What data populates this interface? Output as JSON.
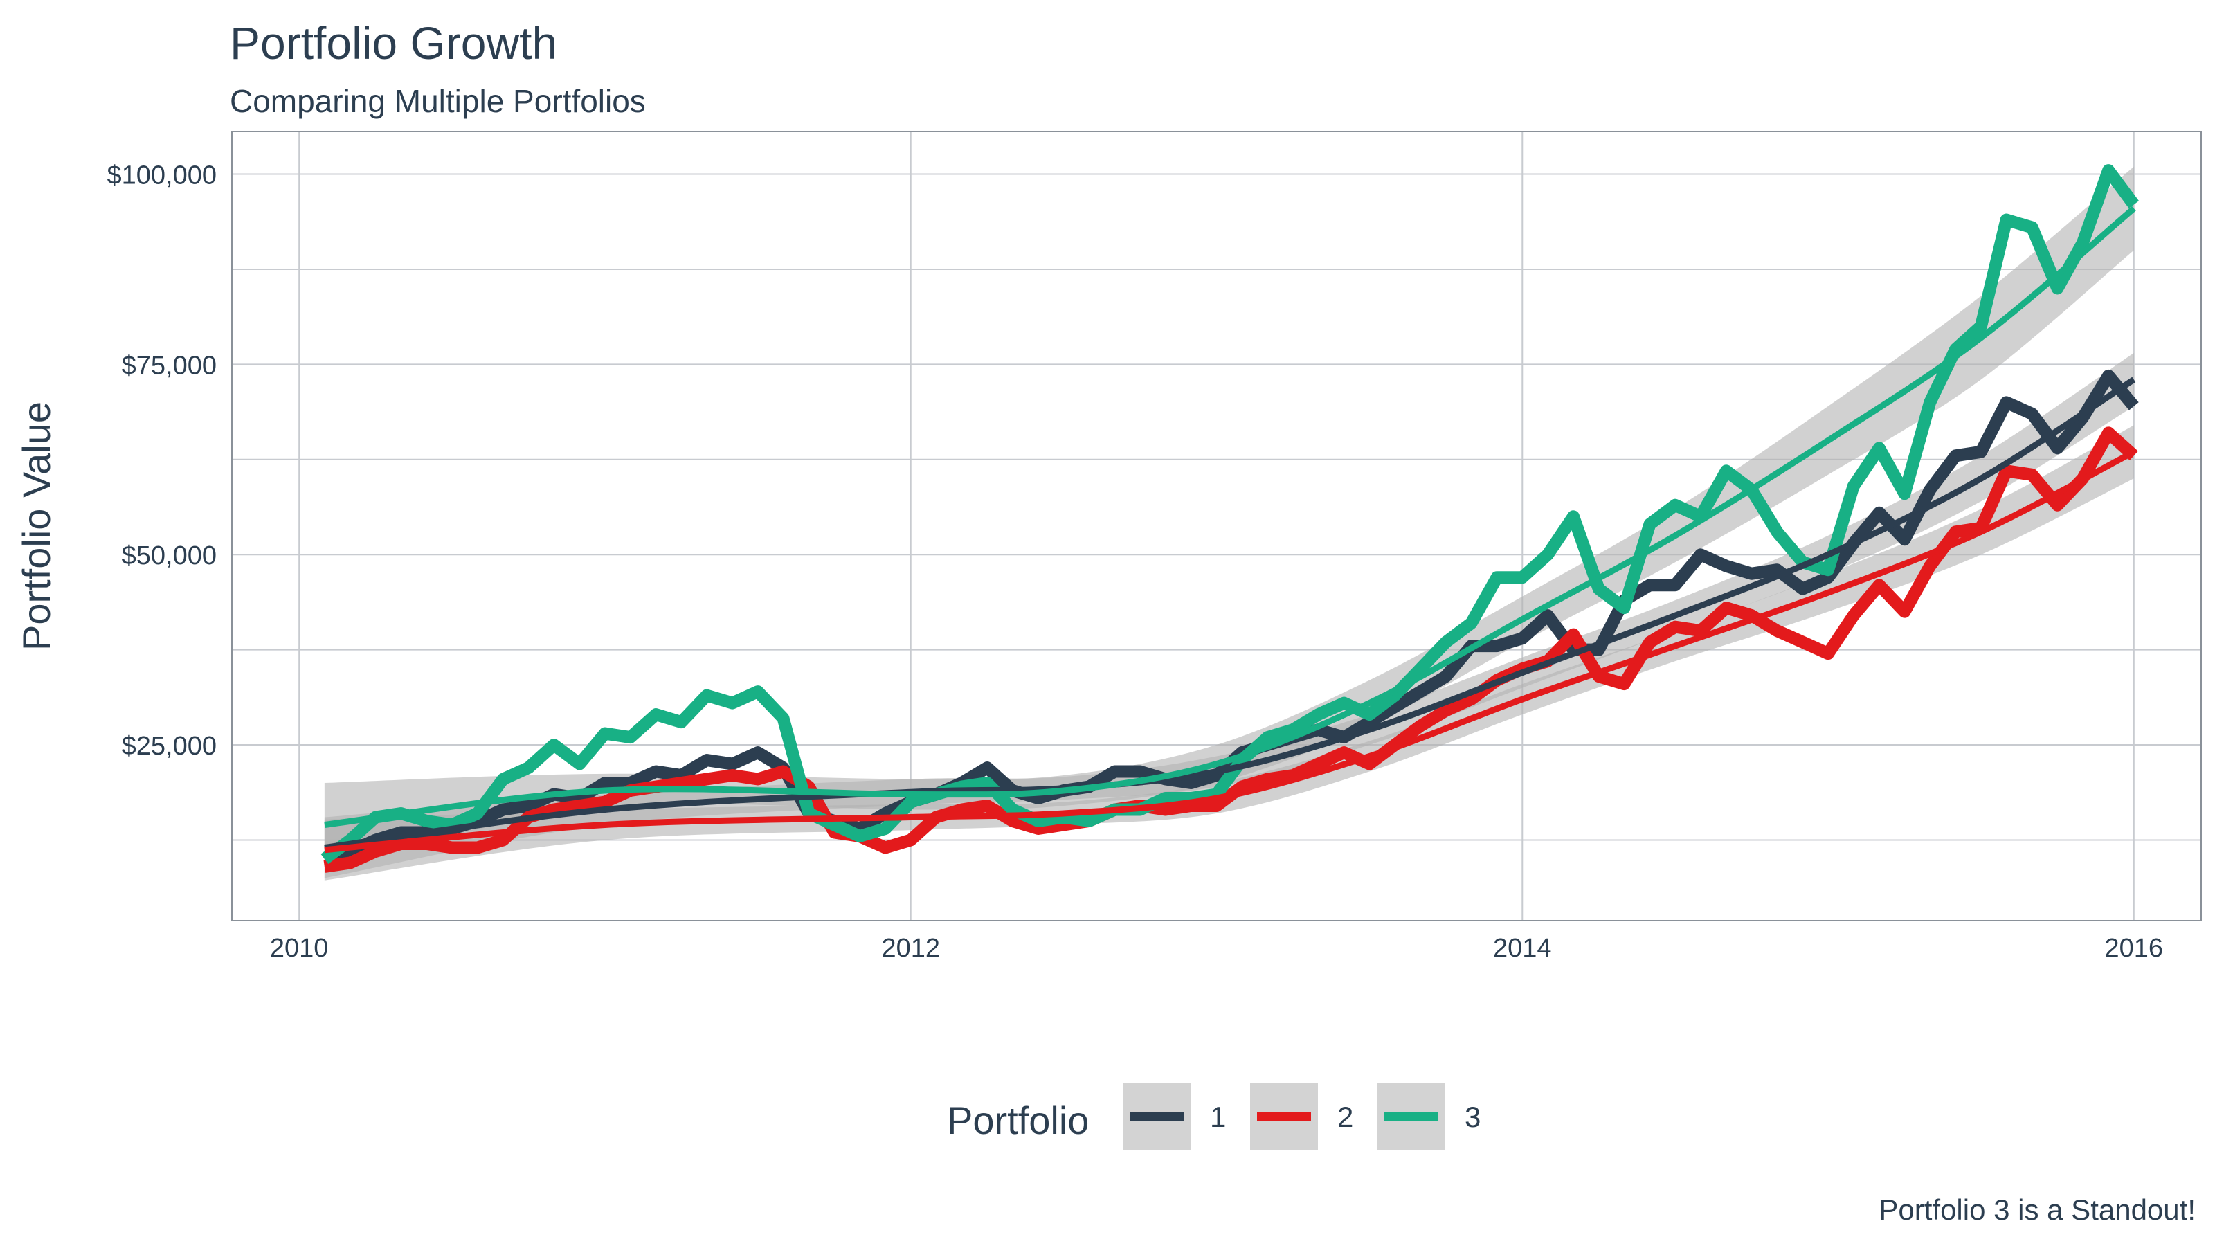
{
  "chart_data": {
    "type": "line",
    "title": "Portfolio Growth",
    "subtitle": "Comparing Multiple Portfolios",
    "xlabel": "",
    "ylabel": "Portfolio Value",
    "caption": "Portfolio 3 is a Standout!",
    "legend_title": "Portfolio",
    "legend_position": "bottom",
    "grid": true,
    "smooth_overlay": true,
    "xlim": [
      2009.78,
      2016.22
    ],
    "ylim": [
      1900,
      105600
    ],
    "x_ticks": [
      2010,
      2012,
      2014,
      2016
    ],
    "y_ticks": [
      25000,
      50000,
      75000,
      100000
    ],
    "y_tick_labels": [
      "$25,000",
      "$50,000",
      "$75,000",
      "$100,000"
    ],
    "x_tick_labels": [
      "2010",
      "2012",
      "2014",
      "2016"
    ],
    "x": [
      2010.083,
      2010.167,
      2010.25,
      2010.333,
      2010.417,
      2010.5,
      2010.583,
      2010.667,
      2010.75,
      2010.833,
      2010.917,
      2011.0,
      2011.083,
      2011.167,
      2011.25,
      2011.333,
      2011.417,
      2011.5,
      2011.583,
      2011.667,
      2011.75,
      2011.833,
      2011.917,
      2012.0,
      2012.083,
      2012.167,
      2012.25,
      2012.333,
      2012.417,
      2012.5,
      2012.583,
      2012.667,
      2012.75,
      2012.833,
      2012.917,
      2013.0,
      2013.083,
      2013.167,
      2013.25,
      2013.333,
      2013.417,
      2013.5,
      2013.583,
      2013.667,
      2013.75,
      2013.833,
      2013.917,
      2014.0,
      2014.083,
      2014.167,
      2014.25,
      2014.333,
      2014.417,
      2014.5,
      2014.583,
      2014.667,
      2014.75,
      2014.833,
      2014.917,
      2015.0,
      2015.083,
      2015.167,
      2015.25,
      2015.333,
      2015.417,
      2015.5,
      2015.583,
      2015.667,
      2015.75,
      2015.833,
      2015.917,
      2016.0
    ],
    "series": [
      {
        "name": "1",
        "color": "#2c3e50",
        "values": [
          10000,
          11000,
          12500,
          13500,
          13500,
          14000,
          15000,
          16500,
          17000,
          18500,
          18000,
          20000,
          20000,
          21500,
          21000,
          23000,
          22500,
          24000,
          22000,
          16000,
          15000,
          14000,
          16000,
          17500,
          18500,
          20000,
          22000,
          19000,
          18000,
          19000,
          19500,
          21500,
          21500,
          20500,
          20000,
          21000,
          24000,
          25000,
          26000,
          27000,
          26000,
          28000,
          30000,
          32000,
          34000,
          38000,
          38000,
          39000,
          42000,
          37500,
          37500,
          44000,
          46000,
          46000,
          50000,
          48500,
          47500,
          48000,
          45500,
          47000,
          51500,
          55500,
          52000,
          58500,
          63000,
          63500,
          70000,
          68500,
          64000,
          68000,
          73500,
          69500
        ]
      },
      {
        "name": "2",
        "color": "#e31a1c",
        "values": [
          9000,
          9500,
          11000,
          12000,
          12000,
          11500,
          11500,
          12500,
          15500,
          16500,
          17000,
          17500,
          19000,
          19500,
          20000,
          20500,
          21000,
          20500,
          21500,
          19500,
          13500,
          13000,
          11500,
          12500,
          15500,
          16500,
          17000,
          15000,
          14000,
          14500,
          15000,
          16500,
          17000,
          16500,
          17000,
          17000,
          19500,
          20500,
          21000,
          22500,
          24000,
          22500,
          25000,
          27500,
          29500,
          31000,
          33500,
          35000,
          36000,
          39500,
          34000,
          33000,
          38500,
          40500,
          40000,
          43000,
          42000,
          40000,
          38500,
          37000,
          42000,
          46000,
          42500,
          48500,
          53000,
          53500,
          61000,
          60500,
          56500,
          60000,
          66000,
          63000
        ]
      },
      {
        "name": "3",
        "color": "#18b085",
        "values": [
          10000,
          12500,
          15500,
          16000,
          15000,
          14500,
          16000,
          20500,
          22000,
          25000,
          22500,
          26500,
          26000,
          29000,
          28000,
          31500,
          30500,
          32000,
          28500,
          16000,
          14500,
          13000,
          14000,
          17500,
          18500,
          19500,
          20000,
          16500,
          15000,
          15500,
          15000,
          16500,
          16500,
          18000,
          18000,
          18500,
          23000,
          26000,
          27000,
          29000,
          30500,
          29000,
          31500,
          35000,
          38500,
          41000,
          47000,
          47000,
          50000,
          55000,
          45500,
          43000,
          54000,
          56500,
          55000,
          61000,
          58500,
          53000,
          49000,
          48000,
          59000,
          64000,
          58000,
          70000,
          77000,
          80000,
          94000,
          93000,
          85000,
          91000,
          100500,
          96000
        ]
      }
    ],
    "smooth": [
      {
        "name": "1",
        "color": "#2c3e50",
        "x": [
          2010.083,
          2011.0,
          2012.0,
          2012.5,
          2013.0,
          2013.5,
          2014.0,
          2014.5,
          2015.0,
          2015.5,
          2016.0
        ],
        "values": [
          11500,
          16500,
          18800,
          19300,
          21500,
          27000,
          34500,
          42000,
          50000,
          60000,
          73000
        ],
        "se_upper": [
          15500,
          18500,
          20500,
          20800,
          23500,
          29000,
          36500,
          44000,
          52500,
          63000,
          76500
        ],
        "se_lower": [
          7500,
          14500,
          17100,
          17800,
          19500,
          25000,
          32500,
          40000,
          47500,
          57000,
          69500
        ]
      },
      {
        "name": "2",
        "color": "#e31a1c",
        "x": [
          2010.083,
          2011.0,
          2012.0,
          2012.5,
          2013.0,
          2013.5,
          2014.0,
          2014.5,
          2015.0,
          2015.5,
          2016.0
        ],
        "values": [
          11200,
          14500,
          15500,
          16000,
          18000,
          23500,
          31000,
          38000,
          45000,
          53000,
          63500
        ],
        "se_upper": [
          15200,
          16500,
          17200,
          17500,
          20000,
          25500,
          33000,
          40000,
          47500,
          56000,
          67000
        ],
        "se_lower": [
          7200,
          12500,
          13800,
          14500,
          16000,
          21500,
          29000,
          36000,
          42500,
          50000,
          60000
        ]
      },
      {
        "name": "3",
        "color": "#18b085",
        "x": [
          2010.083,
          2011.0,
          2012.0,
          2012.5,
          2013.0,
          2013.5,
          2014.0,
          2014.5,
          2015.0,
          2015.5,
          2016.0
        ],
        "values": [
          14500,
          19000,
          18500,
          19000,
          22500,
          30500,
          41500,
          52500,
          65000,
          78500,
          95500
        ],
        "se_upper": [
          20000,
          21200,
          20500,
          21000,
          25000,
          33500,
          44500,
          56000,
          69500,
          84000,
          101000
        ],
        "se_lower": [
          9000,
          16800,
          16500,
          17000,
          20000,
          27500,
          38500,
          49000,
          60500,
          73000,
          90000
        ]
      }
    ]
  }
}
